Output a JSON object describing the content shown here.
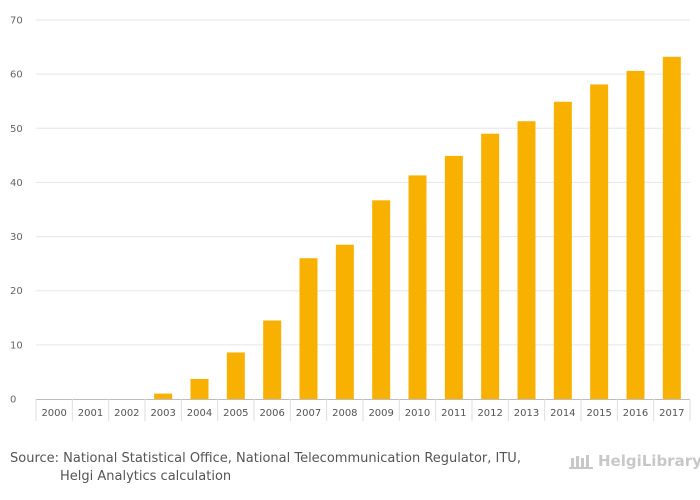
{
  "chart_data": {
    "type": "bar",
    "title": "",
    "xlabel": "",
    "ylabel": "",
    "categories": [
      "2000",
      "2001",
      "2002",
      "2003",
      "2004",
      "2005",
      "2006",
      "2007",
      "2008",
      "2009",
      "2010",
      "2011",
      "2012",
      "2013",
      "2014",
      "2015",
      "2016",
      "2017"
    ],
    "values": [
      0,
      0,
      0,
      1.0,
      3.7,
      8.6,
      14.5,
      26.0,
      28.5,
      36.7,
      41.3,
      44.9,
      49.0,
      51.3,
      54.9,
      58.1,
      60.6,
      63.2
    ],
    "ylim": [
      0,
      70
    ],
    "yticks": [
      0,
      10,
      20,
      30,
      40,
      50,
      60,
      70
    ],
    "grid": true,
    "bar_color": "#f8b100"
  },
  "footer": {
    "source_line1": "Source: National Statistical Office, National Telecommunication Regulator, ITU,",
    "source_line2": "Helgi Analytics calculation",
    "brand_name": "HelgiLibrary",
    "brand_icon": "library-building-icon"
  }
}
